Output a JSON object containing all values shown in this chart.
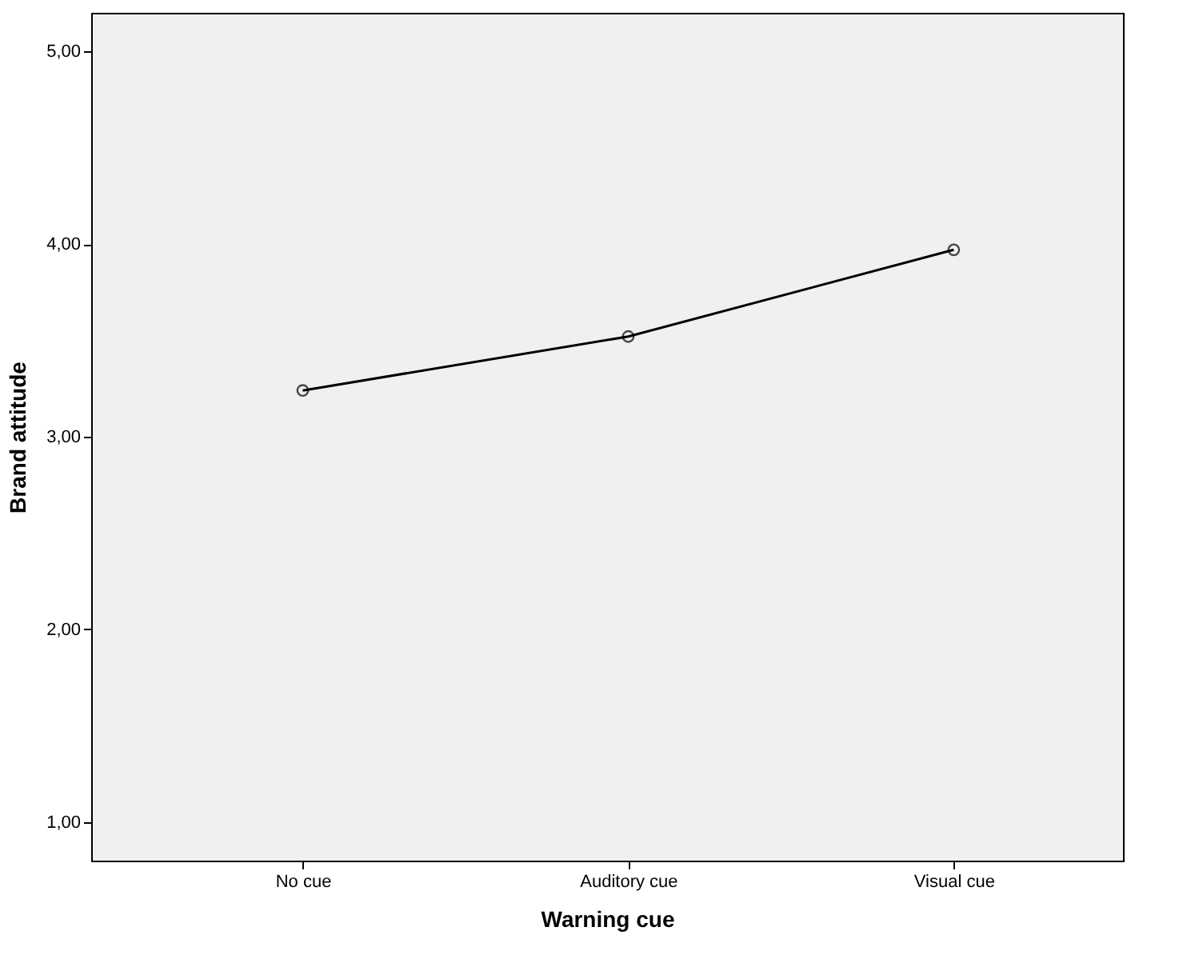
{
  "chart_data": {
    "type": "line",
    "xlabel": "Warning cue",
    "ylabel": "Brand attitude",
    "categories": [
      "No cue",
      "Auditory cue",
      "Visual cue"
    ],
    "series": [
      {
        "color": "#000000",
        "values": [
          3.24,
          3.52,
          3.97
        ]
      }
    ],
    "ylim": [
      0.8,
      5.2
    ],
    "yticks": [
      {
        "value": 1,
        "label": "1,00"
      },
      {
        "value": 2,
        "label": "2,00"
      },
      {
        "value": 3,
        "label": "3,00"
      },
      {
        "value": 4,
        "label": "4,00"
      },
      {
        "value": 5,
        "label": "5,00"
      }
    ],
    "grid": false,
    "marker": "circle",
    "line_style": "solid"
  }
}
